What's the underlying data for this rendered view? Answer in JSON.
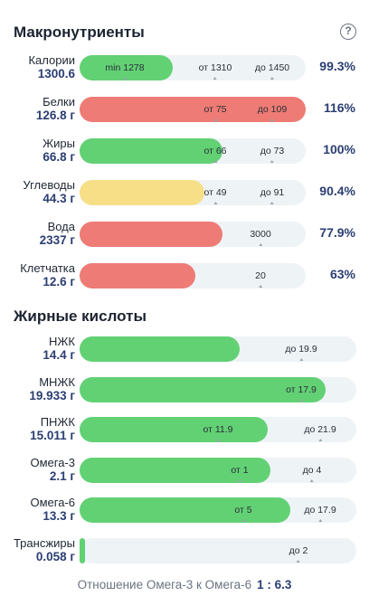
{
  "macros": {
    "title": "Макронутриенты",
    "rows": [
      {
        "name": "Калории",
        "value": "1300.6",
        "fill": 0.41,
        "color": "green",
        "percent": "99.3%",
        "markers": [
          {
            "label": "min 1278",
            "pos": 0.2
          },
          {
            "label": "от 1310",
            "pos": 0.6
          },
          {
            "label": "до 1450",
            "pos": 0.85
          }
        ]
      },
      {
        "name": "Белки",
        "value": "126.8 г",
        "fill": 1.0,
        "color": "red",
        "percent": "116%",
        "markers": [
          {
            "label": "от 75",
            "pos": 0.6
          },
          {
            "label": "до 109",
            "pos": 0.85
          }
        ]
      },
      {
        "name": "Жиры",
        "value": "66.8 г",
        "fill": 0.63,
        "color": "green",
        "percent": "100%",
        "markers": [
          {
            "label": "от 66",
            "pos": 0.6
          },
          {
            "label": "до 73",
            "pos": 0.85
          }
        ]
      },
      {
        "name": "Углеводы",
        "value": "44.3 г",
        "fill": 0.55,
        "color": "yellow",
        "percent": "90.4%",
        "markers": [
          {
            "label": "от 49",
            "pos": 0.6
          },
          {
            "label": "до 91",
            "pos": 0.85
          }
        ]
      },
      {
        "name": "Вода",
        "value": "2337 г",
        "fill": 0.63,
        "color": "red",
        "percent": "77.9%",
        "markers": [
          {
            "label": "3000",
            "pos": 0.8
          }
        ]
      },
      {
        "name": "Клетчатка",
        "value": "12.6 г",
        "fill": 0.51,
        "color": "red",
        "percent": "63%",
        "markers": [
          {
            "label": "20",
            "pos": 0.8
          }
        ]
      }
    ]
  },
  "fatty_acids": {
    "title": "Жирные кислоты",
    "rows": [
      {
        "name": "НЖК",
        "value": "14.4 г",
        "fill": 0.58,
        "color": "green",
        "markers": [
          {
            "label": "до 19.9",
            "pos": 0.8
          }
        ]
      },
      {
        "name": "МНЖК",
        "value": "19.933 г",
        "fill": 0.89,
        "color": "green",
        "markers": [
          {
            "label": "от 17.9",
            "pos": 0.8
          }
        ]
      },
      {
        "name": "ПНЖК",
        "value": "15.011 г",
        "fill": 0.68,
        "color": "green",
        "markers": [
          {
            "label": "от 11.9",
            "pos": 0.5
          },
          {
            "label": "до 21.9",
            "pos": 0.87
          }
        ]
      },
      {
        "name": "Омега-3",
        "value": "2.1 г",
        "fill": 0.69,
        "color": "green",
        "markers": [
          {
            "label": "от 1",
            "pos": 0.58
          },
          {
            "label": "до 4",
            "pos": 0.84
          }
        ]
      },
      {
        "name": "Омега-6",
        "value": "13.3 г",
        "fill": 0.76,
        "color": "green",
        "markers": [
          {
            "label": "от 5",
            "pos": 0.59
          },
          {
            "label": "до 17.9",
            "pos": 0.87
          }
        ]
      },
      {
        "name": "Трансжиры",
        "value": "0.058 г",
        "fill": 0.02,
        "color": "green",
        "markers": [
          {
            "label": "до 2",
            "pos": 0.79
          }
        ]
      }
    ]
  },
  "ratio": {
    "label": "Отношение Омега-3 к Омега-6",
    "value": "1 : 6.3"
  },
  "icons": {
    "help": "question-circle-icon"
  },
  "colors": {
    "green": "#62d174",
    "red": "#ee7b75",
    "yellow": "#f6df86",
    "track": "#eef3f6",
    "accent": "#2b3e72"
  }
}
